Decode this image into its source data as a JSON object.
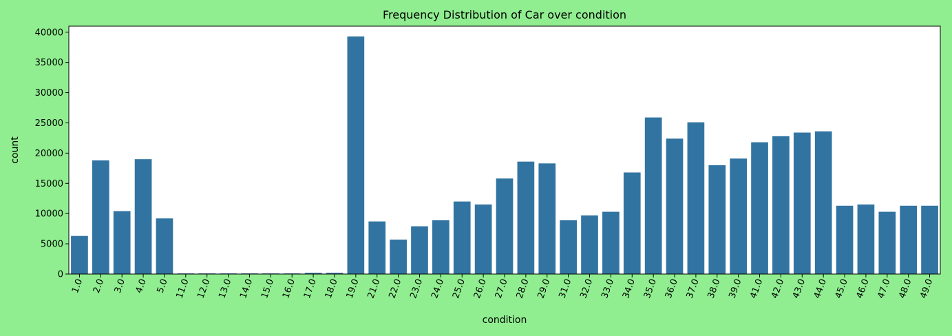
{
  "chart_data": {
    "type": "bar",
    "title": "Frequency Distribution of Car over condition",
    "xlabel": "condition",
    "ylabel": "count",
    "ylim": [
      0,
      41000
    ],
    "yticks": [
      0,
      5000,
      10000,
      15000,
      20000,
      25000,
      30000,
      35000,
      40000
    ],
    "grid": false,
    "bar_color": "#3274a1",
    "background_color": "#90ee90",
    "categories": [
      "1.0",
      "2.0",
      "3.0",
      "4.0",
      "5.0",
      "11.0",
      "12.0",
      "13.0",
      "14.0",
      "15.0",
      "16.0",
      "17.0",
      "18.0",
      "19.0",
      "21.0",
      "22.0",
      "23.0",
      "24.0",
      "25.0",
      "26.0",
      "27.0",
      "28.0",
      "29.0",
      "31.0",
      "32.0",
      "33.0",
      "34.0",
      "35.0",
      "36.0",
      "37.0",
      "38.0",
      "39.0",
      "41.0",
      "42.0",
      "43.0",
      "44.0",
      "45.0",
      "46.0",
      "47.0",
      "48.0",
      "49.0"
    ],
    "values": [
      6300,
      18800,
      10400,
      19000,
      9200,
      100,
      100,
      100,
      100,
      100,
      100,
      200,
      200,
      39300,
      8700,
      5700,
      7900,
      8900,
      12000,
      11500,
      15800,
      18600,
      18300,
      8900,
      9700,
      10300,
      16800,
      25900,
      22400,
      25100,
      18000,
      19100,
      21800,
      22800,
      23400,
      23600,
      11300,
      11500,
      10300,
      11300,
      11300
    ]
  }
}
